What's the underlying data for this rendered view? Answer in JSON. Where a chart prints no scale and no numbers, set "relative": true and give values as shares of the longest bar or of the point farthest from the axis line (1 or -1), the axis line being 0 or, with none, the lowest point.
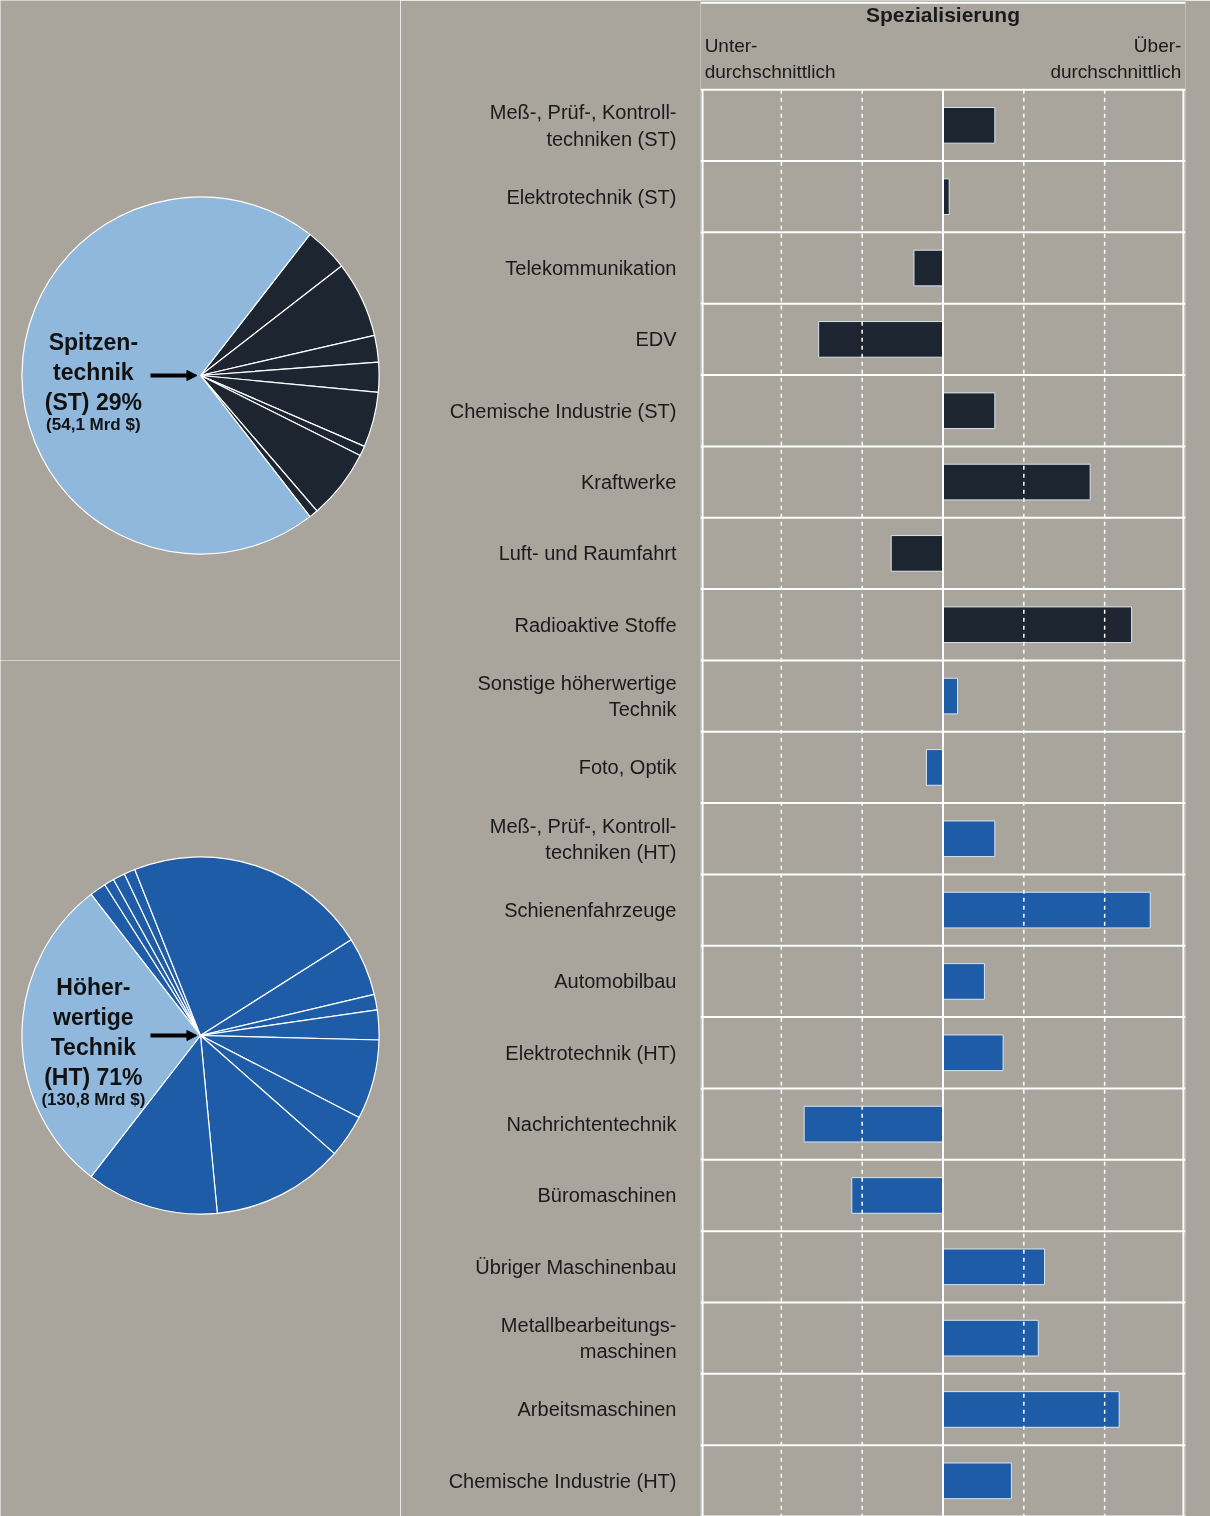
{
  "chart_data": [
    {
      "type": "pie",
      "categories": [
        null,
        null,
        null,
        null,
        null,
        null,
        null,
        null,
        null
      ],
      "values": [
        4.0,
        6.9,
        2.4,
        2.7,
        5.0,
        0.9,
        6.3,
        0.8,
        71
      ],
      "colors": [
        "#1c2530",
        "#1c2530",
        "#1c2530",
        "#1c2530",
        "#1c2530",
        "#1c2530",
        "#1c2530",
        "#1c2530",
        "#8fb8dc"
      ],
      "annotations": [
        "Spitzen-\ntechnik\n(ST) 29%",
        "(54,1 Mrd $)"
      ]
    },
    {
      "type": "pie",
      "categories": [
        null,
        null,
        null,
        null,
        null,
        null,
        null,
        null,
        null,
        null,
        null,
        null,
        null
      ],
      "values": [
        1.5,
        0.9,
        1.1,
        1.0,
        22.0,
        5.3,
        1.4,
        2.7,
        7.2,
        3.9,
        12.0,
        12.0,
        29
      ],
      "colors": [
        "#1f5ca8",
        "#1f5ca8",
        "#1f5ca8",
        "#1f5ca8",
        "#1f5ca8",
        "#1f5ca8",
        "#1f5ca8",
        "#1f5ca8",
        "#1f5ca8",
        "#1f5ca8",
        "#1f5ca8",
        "#1f5ca8",
        "#8fb8dc"
      ],
      "annotations": [
        "Höher-\nwertige\nTechnik\n(HT) 71%",
        "(130,8 Mrd $)"
      ]
    },
    {
      "type": "bar",
      "orientation": "horizontal",
      "relative": true,
      "grid": true,
      "title": "Spezialisierung",
      "annotations": [
        "Unter-\ndurchschnittlich",
        "Über-\ndurchschnittlich"
      ],
      "categories": [
        "Meß-, Prüf-, Kontroll-\ntechniken (ST)",
        "Elektrotechnik (ST)",
        "Telekommunikation",
        "EDV",
        "Chemische Industrie (ST)",
        "Kraftwerke",
        "Luft- und Raumfahrt",
        "Radioaktive Stoffe",
        "Sonstige höherwertige\nTechnik",
        "Foto, Optik",
        "Meß-, Prüf-, Kontroll-\ntechniken (HT)",
        "Schienenfahrzeuge",
        "Automobilbau",
        "Elektrotechnik (HT)",
        "Nachrichtentechnik",
        "Büromaschinen",
        "Übriger Maschinenbau",
        "Metallbearbeitungs-\nmaschinen",
        "Arbeitsmaschinen",
        "Chemische Industrie (HT)"
      ],
      "values": [
        0.25,
        0.03,
        -0.14,
        -0.6,
        0.25,
        0.71,
        -0.25,
        0.91,
        0.07,
        -0.08,
        0.25,
        1.0,
        0.2,
        0.29,
        -0.67,
        -0.44,
        0.49,
        0.46,
        0.85,
        0.33
      ],
      "colors": [
        "#1c2530",
        "#1c2530",
        "#1c2530",
        "#1c2530",
        "#1c2530",
        "#1c2530",
        "#1c2530",
        "#1c2530",
        "#1f5ca8",
        "#1f5ca8",
        "#1f5ca8",
        "#1f5ca8",
        "#1f5ca8",
        "#1f5ca8",
        "#1f5ca8",
        "#1f5ca8",
        "#1f5ca8",
        "#1f5ca8",
        "#1f5ca8",
        "#1f5ca8"
      ]
    }
  ]
}
